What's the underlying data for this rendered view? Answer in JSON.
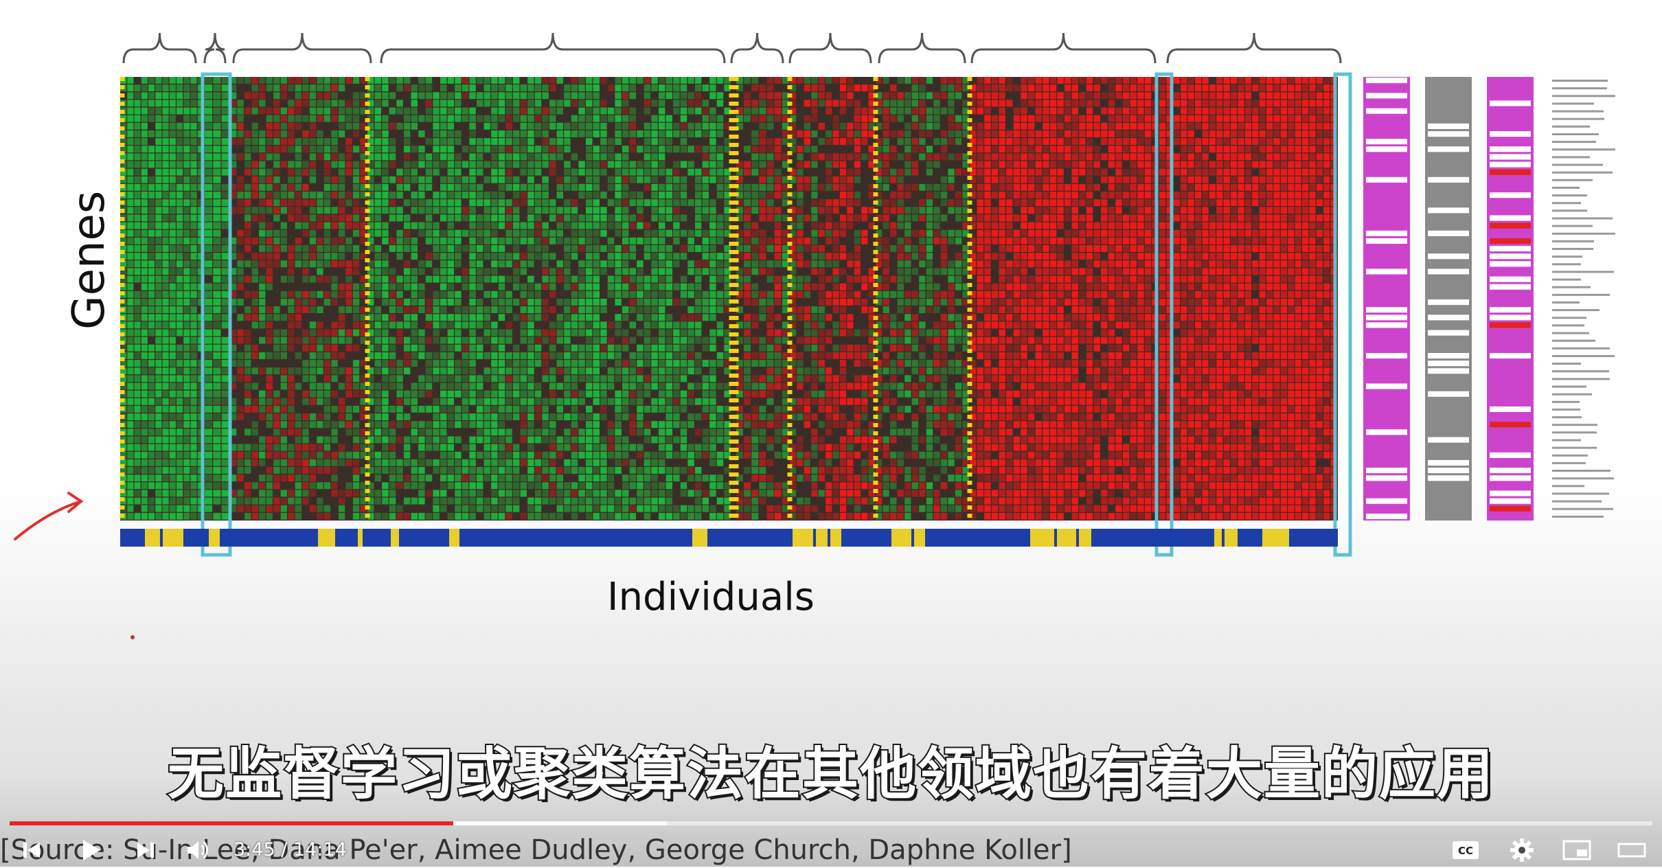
{
  "slide": {
    "y_axis_label": "Genes",
    "x_axis_label": "Individuals",
    "citation": "[Source: Su-In Lee, Dana Pe'er, Aimee Dudley, George Church, Daphne Koller]",
    "heatmap": {
      "palette": {
        "low": "#1f9a3c",
        "high": "#e32222",
        "mid": "#3a2d28",
        "separator": "#f2d21a",
        "highlight_box": "#5ec2d6",
        "magenta": "#cc44cc",
        "annotation_gray": "#8a8a8a",
        "blue": "#1c3ea8",
        "yellow": "#e8cf2a"
      },
      "cluster_bias": [
        -0.85,
        -0.6,
        -0.05,
        -0.5,
        0.05,
        0.25,
        -0.05,
        0.75,
        0.92
      ]
    }
  },
  "subtitle": "无监督学习或聚类算法在其他领域也有着大量的应用",
  "player": {
    "current_time": "3:45",
    "separator": "/",
    "duration": "14:14",
    "played_fraction": 0.27,
    "buffered_fraction": 0.4,
    "accent_color": "#e4262c",
    "icons": [
      "skip-previous-icon",
      "play-icon",
      "volume-icon",
      "skip-next-icon",
      "captions-icon",
      "settings-icon",
      "miniplayer-icon",
      "theater-mode-icon"
    ]
  }
}
